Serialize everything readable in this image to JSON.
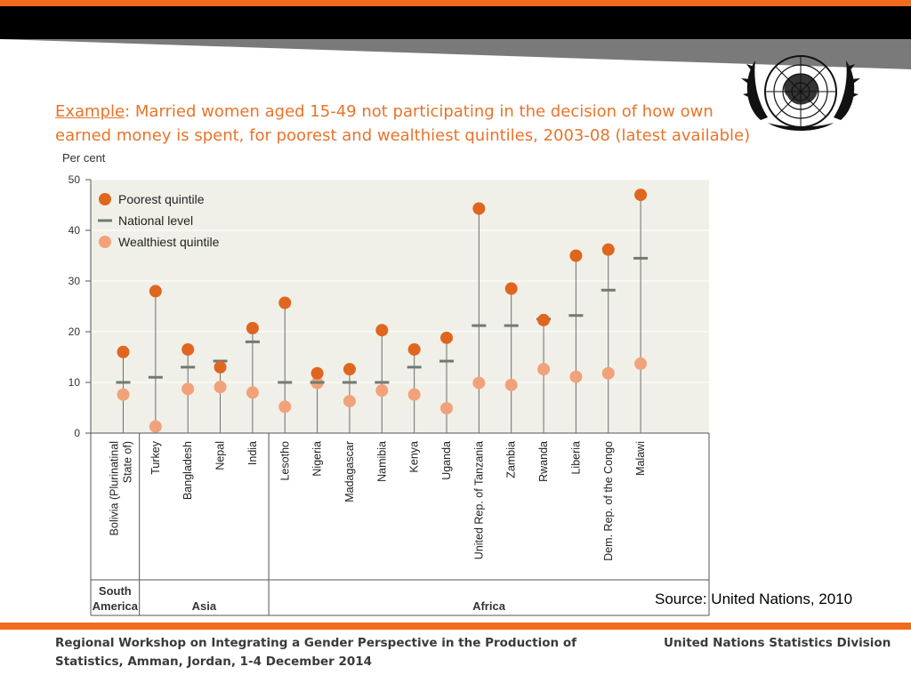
{
  "slide": {
    "title_lead": "Example",
    "title_rest": ": Married women aged 15-49 not participating in the decision of how own earned money is spent, for poorest and wealthiest quintiles, 2003-08 (latest available)",
    "source": "Source: United Nations, 2010",
    "footer_left": "Regional Workshop on Integrating a Gender Perspective in the Production of Statistics, Amman, Jordan, 1-4 December 2014",
    "footer_right": "United Nations Statistics Division"
  },
  "colors": {
    "accent_orange": "#f26b1d",
    "title_orange": "#e8742a",
    "poorest": "#e0661f",
    "wealthiest": "#f2a27a",
    "national": "#6f7a72",
    "plot_bg": "#f0f0e8",
    "top_bar": "#000000",
    "top_stripe": "#7a7a7a"
  },
  "chart_data": {
    "type": "scatter",
    "ylabel": "Per cent",
    "ylim": [
      0,
      50
    ],
    "yticks": [
      0,
      10,
      20,
      30,
      40,
      50
    ],
    "grid": true,
    "legend_position": "top-left",
    "categories": [
      "Bolivia (Plurinatinal State of)",
      "Turkey",
      "Bangladesh",
      "Nepal",
      "India",
      "Lesotho",
      "Nigeria",
      "Madagascar",
      "Namibia",
      "Kenya",
      "Uganda",
      "United Rep. of Tanzania",
      "Zambia",
      "Rwanda",
      "Liberia",
      "Dem. Rep. of the Congo",
      "Malawi"
    ],
    "groups": [
      {
        "name": "South America",
        "count": 1
      },
      {
        "name": "Asia",
        "count": 4
      },
      {
        "name": "Africa",
        "count": 12
      }
    ],
    "series": [
      {
        "name": "Poorest quintile",
        "marker": "dot",
        "values": [
          16,
          28,
          16.5,
          13,
          20.7,
          25.7,
          11.8,
          12.6,
          20.3,
          16.5,
          18.8,
          44.3,
          28.5,
          22.3,
          35,
          36.2,
          47
        ]
      },
      {
        "name": "National level",
        "marker": "dash",
        "values": [
          10,
          11,
          13,
          14.2,
          18,
          10,
          10,
          10,
          10,
          13,
          14.2,
          21.2,
          21.2,
          22.5,
          23.2,
          28.2,
          34.5
        ]
      },
      {
        "name": "Wealthiest quintile",
        "marker": "dot",
        "values": [
          7.6,
          1.3,
          8.7,
          9.1,
          8,
          5.2,
          9.9,
          6.3,
          8.4,
          7.6,
          4.9,
          9.9,
          9.5,
          12.6,
          11.1,
          11.8,
          13.7
        ]
      }
    ]
  }
}
